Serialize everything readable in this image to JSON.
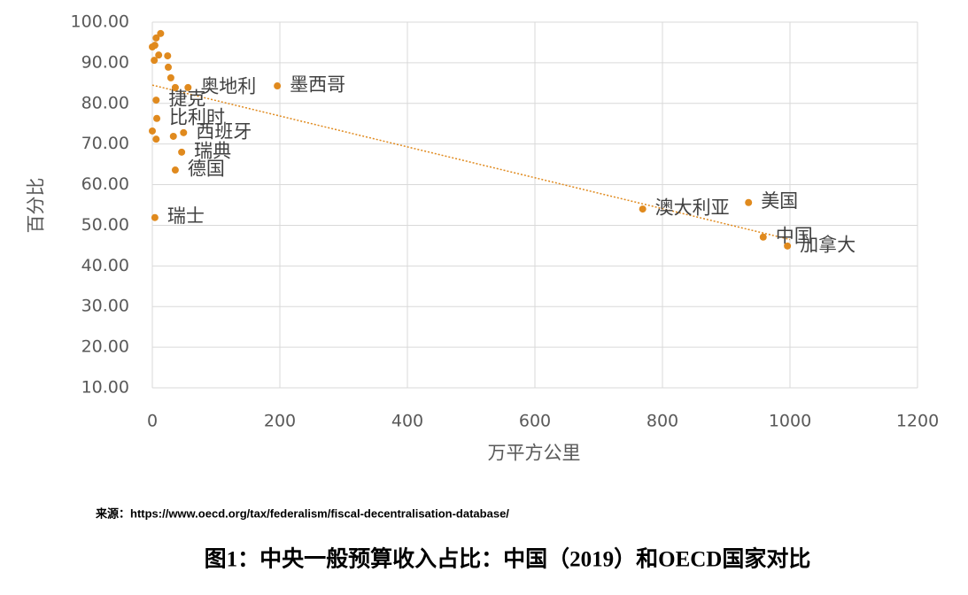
{
  "chart_data": {
    "type": "scatter",
    "x_label": "万平方公里",
    "y_label": "百分比",
    "source": "来源：https://www.oecd.org/tax/federalism/fiscal-decentralisation-database/",
    "caption": "图1：中央一般预算收入占比：中国（2019）和OECD国家对比",
    "color": "#e08a1e",
    "trend_color": "#e08a1e",
    "x": [
      196,
      769,
      935,
      958,
      996,
      4,
      36,
      46,
      49,
      7,
      6,
      56,
      0,
      6,
      33,
      36,
      29,
      25,
      24,
      3,
      10,
      4,
      6,
      13,
      0
    ],
    "y": [
      84.3,
      54.0,
      55.6,
      47.1,
      44.9,
      51.9,
      63.6,
      68.0,
      72.8,
      76.3,
      80.8,
      83.9,
      73.2,
      71.2,
      71.9,
      83.9,
      86.3,
      88.9,
      91.7,
      90.6,
      91.9,
      94.3,
      96.1,
      97.2,
      93.9
    ],
    "labels": [
      "墨西哥",
      "澳大利亚",
      "美国",
      "中国",
      "加拿大",
      "瑞士",
      "德国",
      "瑞典",
      "西班牙",
      "比利时",
      "捷克",
      "奥地利",
      null,
      null,
      null,
      null,
      null,
      null,
      null,
      null,
      null,
      null,
      null,
      null,
      null
    ],
    "trendline": {
      "x": [
        0,
        1000
      ],
      "y": [
        84.5,
        46.5
      ]
    },
    "xlim": [
      0,
      1200
    ],
    "xticks": [
      0,
      200,
      400,
      600,
      800,
      1000,
      1200
    ],
    "ylim": [
      10,
      100
    ],
    "yticks": [
      {
        "value": 10,
        "label": "10.00"
      },
      {
        "value": 20,
        "label": "20.00"
      },
      {
        "value": 30,
        "label": "30.00"
      },
      {
        "value": 40,
        "label": "40.00"
      },
      {
        "value": 50,
        "label": "50.00"
      },
      {
        "value": 60,
        "label": "60.00"
      },
      {
        "value": 70,
        "label": "70.00"
      },
      {
        "value": 80,
        "label": "80.00"
      },
      {
        "value": 90,
        "label": "90.00"
      },
      {
        "value": 100,
        "label": "100.00"
      }
    ],
    "grid": true
  }
}
